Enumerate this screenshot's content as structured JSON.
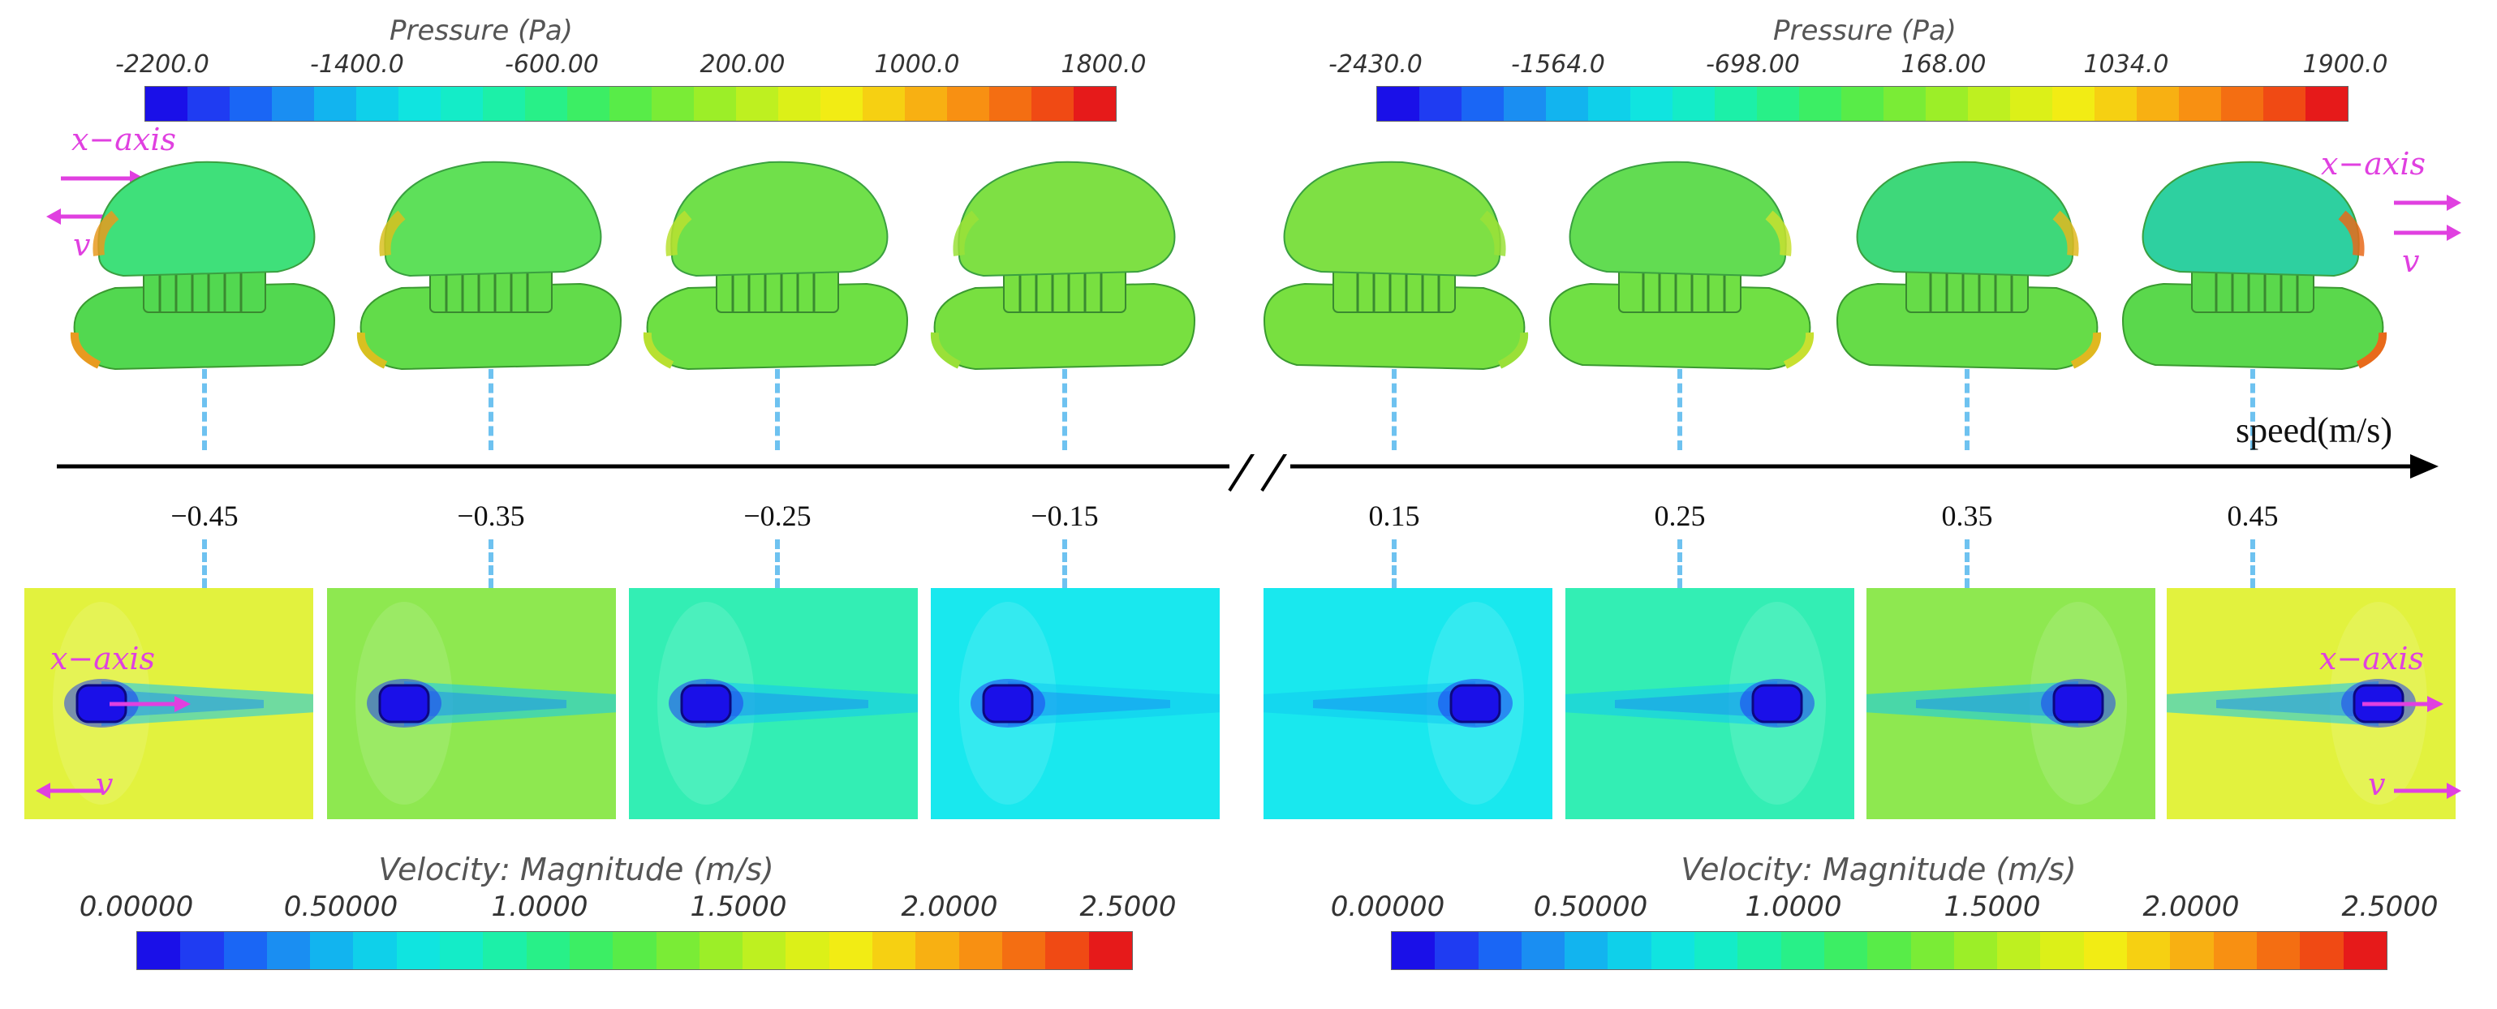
{
  "pressure_colorbars": [
    {
      "title": "Pressure (Pa)",
      "ticks": [
        "-2200.0",
        "-1400.0",
        "-600.00",
        "200.00",
        "1000.0",
        "1800.0"
      ]
    },
    {
      "title": "Pressure (Pa)",
      "ticks": [
        "-2430.0",
        "-1564.0",
        "-698.00",
        "168.00",
        "1034.0",
        "1900.0"
      ]
    }
  ],
  "velocity_colorbars": [
    {
      "title": "Velocity: Magnitude (m/s)",
      "ticks": [
        "0.00000",
        "0.50000",
        "1.0000",
        "1.5000",
        "2.0000",
        "2.5000"
      ]
    },
    {
      "title": "Velocity: Magnitude (m/s)",
      "ticks": [
        "0.00000",
        "0.50000",
        "1.0000",
        "1.5000",
        "2.0000",
        "2.5000"
      ]
    }
  ],
  "axis_label": "speed(m/s)",
  "speeds": [
    "−0.45",
    "−0.35",
    "−0.25",
    "−0.15",
    "0.15",
    "0.25",
    "0.35",
    "0.45"
  ],
  "annotations": {
    "x_axis": "x−axis",
    "v": "v"
  },
  "colormap": [
    "#1a10e8",
    "#1f3cf2",
    "#1a66f5",
    "#1a8ef2",
    "#12b4ef",
    "#0fd0ea",
    "#10e4e0",
    "#14ecc8",
    "#1cf0a8",
    "#28f088",
    "#3cee64",
    "#58ec48",
    "#7aec36",
    "#9cee28",
    "#bef020",
    "#dcf018",
    "#f2ec14",
    "#f6d012",
    "#f8b012",
    "#f89012",
    "#f46e12",
    "#f04a14",
    "#e61a1a"
  ],
  "panels": [
    {
      "bg": "#e2f23e"
    },
    {
      "bg": "#8ee850"
    },
    {
      "bg": "#33eeb4"
    },
    {
      "bg": "#19e8ee"
    },
    {
      "bg": "#19e8ee"
    },
    {
      "bg": "#33eeb4"
    },
    {
      "bg": "#8ee850"
    },
    {
      "bg": "#e2f23e"
    }
  ]
}
